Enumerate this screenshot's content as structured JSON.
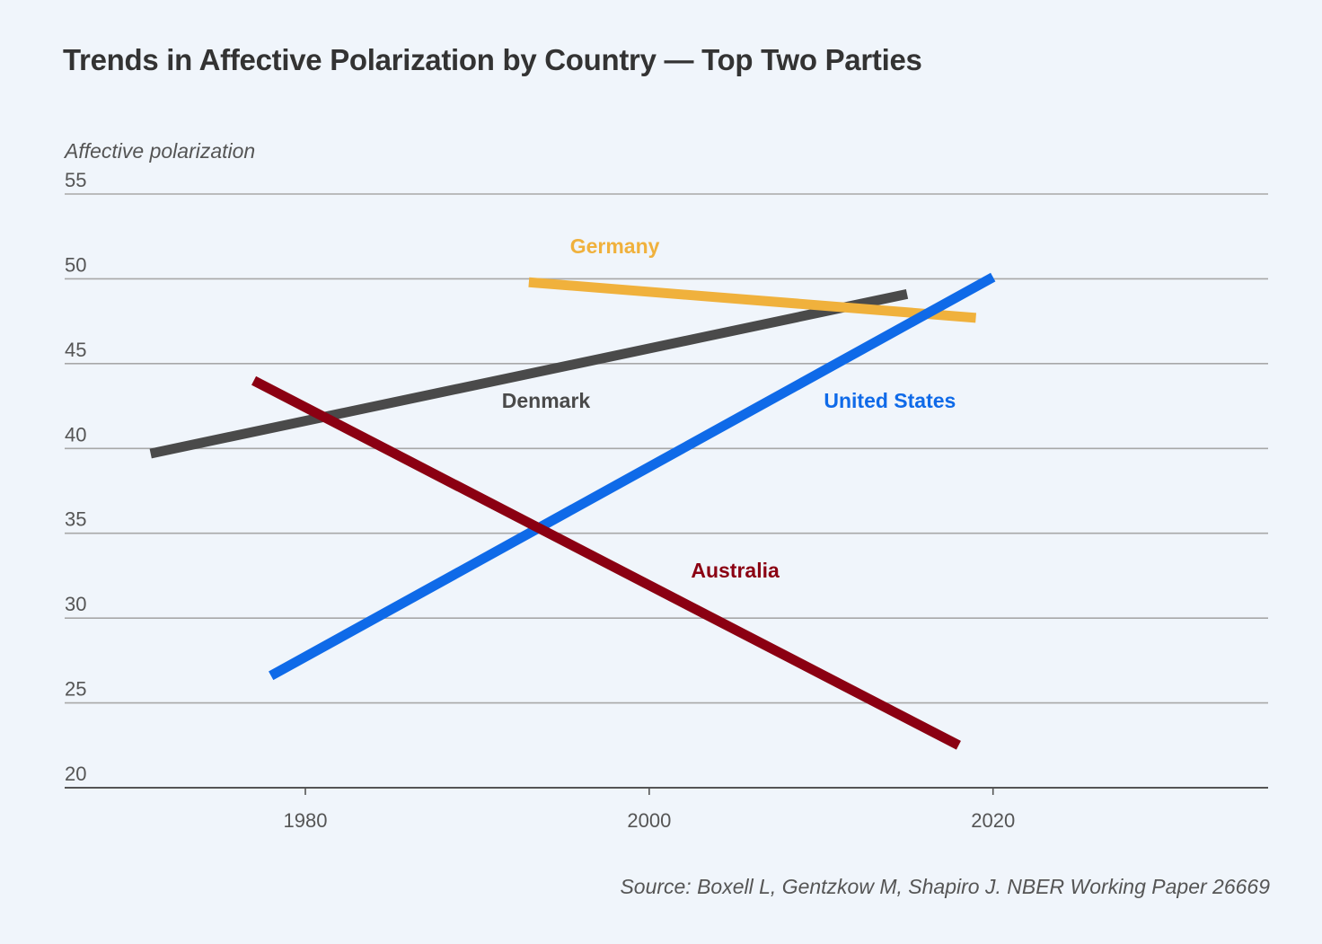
{
  "chart_data": {
    "type": "line",
    "title": "Trends in Affective Polarization by Country — Top Two Parties",
    "ylabel": "Affective polarization",
    "xlabel": "",
    "xlim": [
      1966,
      2036
    ],
    "ylim": [
      20,
      55
    ],
    "yticks": [
      20,
      25,
      30,
      35,
      40,
      45,
      50,
      55
    ],
    "xticks": [
      1980,
      2000,
      2020
    ],
    "grid": "horizontal",
    "source": "Source: Boxell L, Gentzkow M, Shapiro J. NBER Working Paper 26669",
    "series": [
      {
        "name": "Denmark",
        "color": "#4a4a4a",
        "x": [
          1971,
          2015
        ],
        "y": [
          39.7,
          49.1
        ],
        "label_at": [
          1994,
          42.4
        ]
      },
      {
        "name": "Germany",
        "color": "#f0b13c",
        "x": [
          1993,
          2019
        ],
        "y": [
          49.8,
          47.7
        ],
        "label_at": [
          1998,
          51.5
        ]
      },
      {
        "name": "United States",
        "color": "#0f6ae8",
        "x": [
          1978,
          2020
        ],
        "y": [
          26.6,
          50.1
        ],
        "label_at": [
          2014,
          42.4
        ]
      },
      {
        "name": "Australia",
        "color": "#8b0012",
        "x": [
          1977,
          2018
        ],
        "y": [
          44.0,
          22.5
        ],
        "label_at": [
          2005,
          32.4
        ]
      }
    ]
  }
}
